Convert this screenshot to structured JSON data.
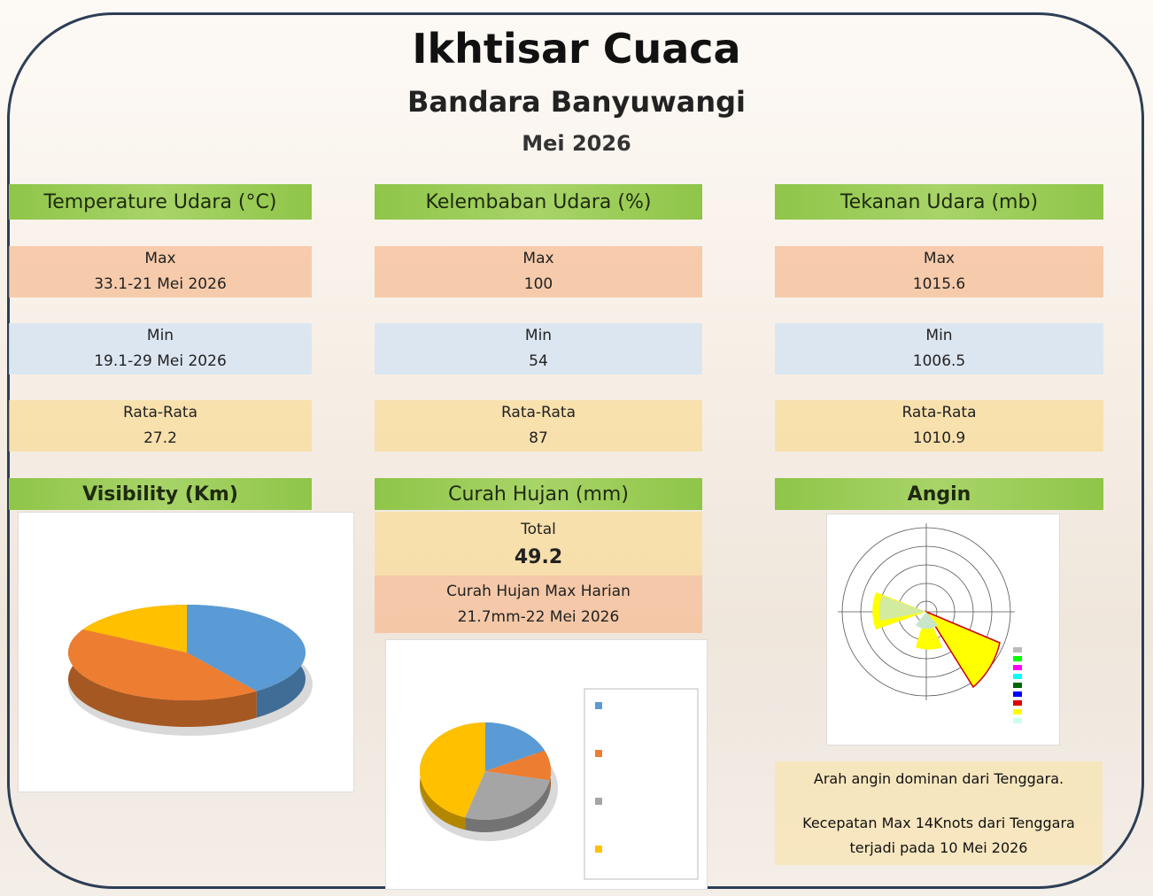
{
  "header": {
    "title": "Ikhtisar Cuaca",
    "subtitle": "Bandara Banyuwangi",
    "period": "Mei 2026"
  },
  "temperature": {
    "heading": "Temperature Udara (°C)",
    "max_label": "Max",
    "max": "33.1-21 Mei 2026",
    "min_label": "Min",
    "min": "19.1-29 Mei 2026",
    "avg_label": "Rata-Rata",
    "avg": 27.2
  },
  "humidity": {
    "heading": "Kelembaban Udara (%)",
    "max_label": "Max",
    "max": 100,
    "min_label": "Min",
    "min": 54,
    "avg_label": "Rata-Rata",
    "avg": 87
  },
  "pressure": {
    "heading": "Tekanan Udara (mb)",
    "max_label": "Max",
    "max": 1015.6,
    "min_label": "Min",
    "min": 1006.5,
    "avg_label": "Rata-Rata",
    "avg": 1010.9
  },
  "visibility": {
    "heading": "Visibility (Km)",
    "chart": {
      "type": "pie",
      "values": [
        40,
        43,
        17
      ],
      "colors": [
        "#5b9bd5",
        "#ed7d31",
        "#ffc000"
      ]
    }
  },
  "rain": {
    "heading": "Curah Hujan (mm)",
    "total_label": "Total",
    "total": 49.2,
    "max_label": "Curah Hujan Max Harian",
    "max": "21.7mm-22 Mei 2026",
    "chart": {
      "type": "pie",
      "values": [
        18,
        10,
        27,
        45
      ],
      "colors": [
        "#5b9bd5",
        "#ed7d31",
        "#a5a5a5",
        "#ffc000"
      ]
    }
  },
  "wind": {
    "heading": "Angin",
    "note1": "Arah angin dominan dari Tenggara.",
    "note2": "Kecepatan Max 14Knots dari Tenggara terjadi pada 10 Mei 2026"
  }
}
